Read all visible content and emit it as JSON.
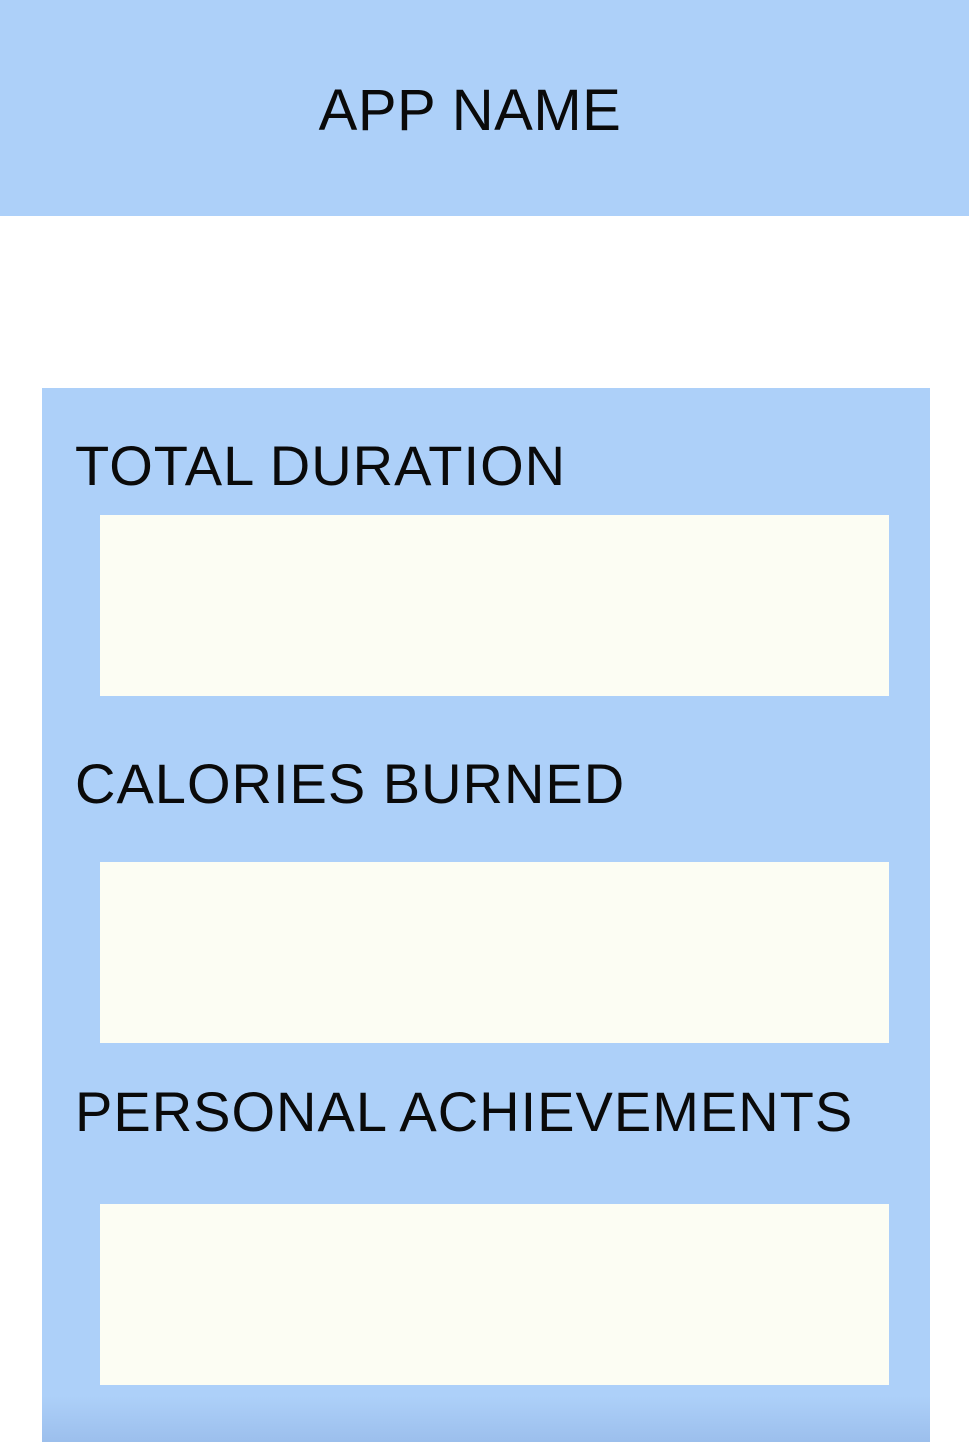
{
  "header": {
    "title": "APP NAME"
  },
  "stats": {
    "sections": [
      {
        "label": "TOTAL DURATION",
        "value": ""
      },
      {
        "label": "CALORIES BURNED",
        "value": ""
      },
      {
        "label": "PERSONAL ACHIEVEMENTS",
        "value": ""
      }
    ]
  },
  "colors": {
    "header_background": "#add0f9",
    "panel_background": "#add0f9",
    "field_background": "#fcfdf3",
    "text": "#0a0a0a"
  }
}
